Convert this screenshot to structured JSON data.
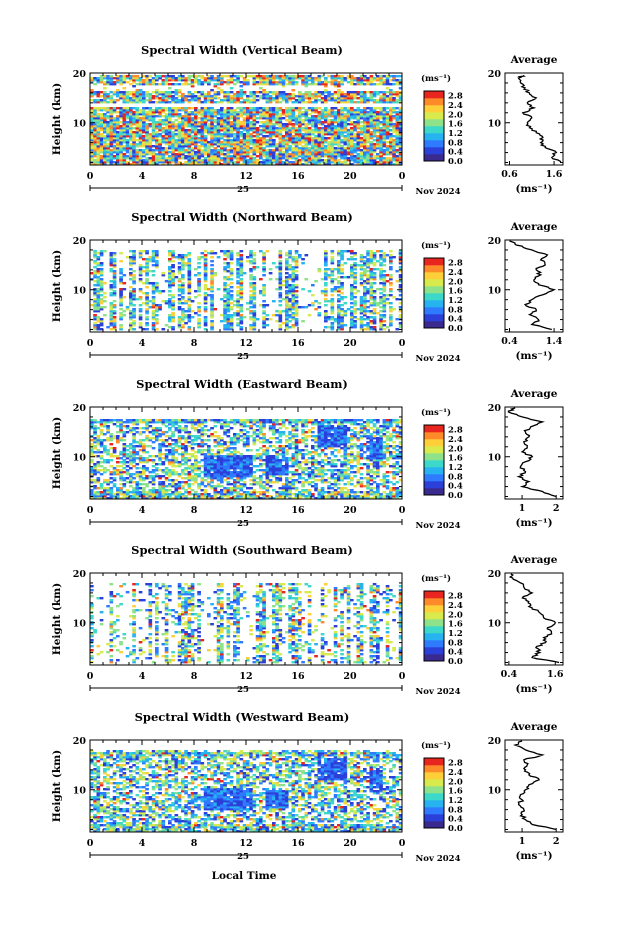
{
  "figure": {
    "xlabel": "Local Time",
    "day_label": "25",
    "date_label": "Nov 2024",
    "colorbar_unit": "(ms⁻¹)",
    "colorbar_ticks": [
      "0.0",
      "0.4",
      "0.8",
      "1.2",
      "1.6",
      "2.0",
      "2.4",
      "2.8"
    ],
    "avg_title": "Average",
    "avg_xlabel": "(ms⁻¹)",
    "ylabel": "Height (km)"
  },
  "colors": {
    "colormap": [
      "#3a2a8f",
      "#2b3fd9",
      "#2f7bff",
      "#27b3f0",
      "#3cd8c9",
      "#8ee38a",
      "#d9ea4d",
      "#ffcf3a",
      "#ff8a2a",
      "#e8251f"
    ]
  },
  "chart_data": [
    {
      "type": "heatmap",
      "title": "Spectral Width (Vertical Beam)",
      "xlabel": "Local Time",
      "ylabel": "Height (km)",
      "x_ticks": [
        "0",
        "4",
        "8",
        "12",
        "16",
        "20",
        "0"
      ],
      "xlim": [
        0,
        24
      ],
      "y_ticks": [
        "10",
        "20"
      ],
      "ylim": [
        1.5,
        20
      ],
      "colorbar_range": [
        0.0,
        3.0
      ],
      "fill": {
        "profile": "vertical",
        "bands": [
          [
            14,
            19.5,
            0.8
          ],
          [
            1.5,
            13,
            0.9
          ]
        ],
        "gaps": [
          [
            16.5,
            17.5
          ]
        ],
        "hot": 0.25
      },
      "average_profile": {
        "title": "Average",
        "xlabel": "(ms⁻¹)",
        "x_ticks": [
          "0.6",
          "1.6"
        ],
        "xlim": [
          0.5,
          1.8
        ],
        "y_ticks": [
          "10",
          "20"
        ],
        "ylim": [
          1.5,
          20
        ],
        "points": [
          [
            1.75,
            2
          ],
          [
            1.55,
            3
          ],
          [
            1.65,
            4
          ],
          [
            1.4,
            5
          ],
          [
            1.3,
            6
          ],
          [
            1.35,
            7
          ],
          [
            1.2,
            8
          ],
          [
            1.05,
            9
          ],
          [
            1.0,
            10
          ],
          [
            1.1,
            11
          ],
          [
            0.9,
            12
          ],
          [
            1.15,
            13
          ],
          [
            1.0,
            14
          ],
          [
            1.2,
            15
          ],
          [
            1.05,
            16
          ],
          [
            0.95,
            17
          ],
          [
            0.85,
            18
          ],
          [
            0.8,
            19
          ],
          [
            0.9,
            19.5
          ]
        ]
      }
    },
    {
      "type": "heatmap",
      "title": "Spectral Width (Northward Beam)",
      "xlabel": "Local Time",
      "ylabel": "Height (km)",
      "x_ticks": [
        "0",
        "4",
        "8",
        "12",
        "16",
        "20",
        "0"
      ],
      "xlim": [
        0,
        24
      ],
      "y_ticks": [
        "10",
        "20"
      ],
      "ylim": [
        1.5,
        20
      ],
      "colorbar_range": [
        0.0,
        3.0
      ],
      "fill": {
        "profile": "sparse",
        "bands": [
          [
            2,
            18,
            0.45
          ]
        ],
        "gaps": [],
        "hot": 0.05
      },
      "average_profile": {
        "title": "Average",
        "xlabel": "(ms⁻¹)",
        "x_ticks": [
          "0.4",
          "1.4"
        ],
        "xlim": [
          0.3,
          1.6
        ],
        "y_ticks": [
          "10",
          "20"
        ],
        "ylim": [
          1.5,
          20
        ],
        "points": [
          [
            1.35,
            2
          ],
          [
            0.9,
            3
          ],
          [
            1.05,
            4
          ],
          [
            0.85,
            5
          ],
          [
            1.0,
            6
          ],
          [
            0.75,
            7
          ],
          [
            0.9,
            8
          ],
          [
            1.15,
            9
          ],
          [
            1.4,
            10
          ],
          [
            1.05,
            11
          ],
          [
            0.95,
            12
          ],
          [
            1.1,
            13
          ],
          [
            1.0,
            14
          ],
          [
            1.2,
            15
          ],
          [
            1.1,
            16
          ],
          [
            1.25,
            17
          ],
          [
            0.9,
            18
          ],
          [
            0.55,
            19
          ],
          [
            0.4,
            19.8
          ]
        ]
      }
    },
    {
      "type": "heatmap",
      "title": "Spectral Width (Eastward Beam)",
      "xlabel": "Local Time",
      "ylabel": "Height (km)",
      "x_ticks": [
        "0",
        "4",
        "8",
        "12",
        "16",
        "20",
        "0"
      ],
      "xlim": [
        0,
        24
      ],
      "y_ticks": [
        "10",
        "20"
      ],
      "ylim": [
        1.5,
        20
      ],
      "colorbar_range": [
        0.0,
        3.0
      ],
      "fill": {
        "profile": "blocks",
        "bands": [
          [
            2,
            17.5,
            0.55
          ]
        ],
        "gaps": [],
        "hot": 0.08
      },
      "average_profile": {
        "title": "Average",
        "xlabel": "(ms⁻¹)",
        "x_ticks": [
          "1",
          "2"
        ],
        "xlim": [
          0.5,
          2.2
        ],
        "y_ticks": [
          "10",
          "20"
        ],
        "ylim": [
          1.5,
          20
        ],
        "points": [
          [
            2.0,
            2
          ],
          [
            1.6,
            3
          ],
          [
            1.0,
            4
          ],
          [
            1.2,
            5
          ],
          [
            0.9,
            6
          ],
          [
            1.1,
            7
          ],
          [
            0.95,
            8
          ],
          [
            1.1,
            9
          ],
          [
            1.3,
            10
          ],
          [
            1.0,
            11
          ],
          [
            1.15,
            12
          ],
          [
            1.05,
            13
          ],
          [
            1.2,
            14
          ],
          [
            1.1,
            15
          ],
          [
            1.25,
            16
          ],
          [
            1.6,
            17
          ],
          [
            1.0,
            18
          ],
          [
            0.6,
            19
          ],
          [
            0.8,
            19.8
          ]
        ]
      }
    },
    {
      "type": "heatmap",
      "title": "Spectral Width (Southward Beam)",
      "xlabel": "Local Time",
      "ylabel": "Height (km)",
      "x_ticks": [
        "0",
        "4",
        "8",
        "12",
        "16",
        "20",
        "0"
      ],
      "xlim": [
        0,
        24
      ],
      "y_ticks": [
        "10",
        "20"
      ],
      "ylim": [
        1.5,
        20
      ],
      "colorbar_range": [
        0.0,
        3.0
      ],
      "fill": {
        "profile": "sparse",
        "bands": [
          [
            2,
            18,
            0.4
          ]
        ],
        "gaps": [],
        "hot": 0.08
      },
      "average_profile": {
        "title": "Average",
        "xlabel": "(ms⁻¹)",
        "x_ticks": [
          "0.4",
          "1.6"
        ],
        "xlim": [
          0.3,
          1.8
        ],
        "y_ticks": [
          "10",
          "20"
        ],
        "ylim": [
          1.5,
          20
        ],
        "points": [
          [
            1.7,
            2
          ],
          [
            1.0,
            3
          ],
          [
            1.2,
            4
          ],
          [
            1.1,
            5
          ],
          [
            1.35,
            6
          ],
          [
            1.3,
            7
          ],
          [
            1.5,
            8
          ],
          [
            1.4,
            9
          ],
          [
            1.6,
            10
          ],
          [
            1.3,
            11
          ],
          [
            1.2,
            12
          ],
          [
            1.0,
            13
          ],
          [
            0.9,
            14
          ],
          [
            0.75,
            15
          ],
          [
            1.0,
            16
          ],
          [
            0.8,
            17
          ],
          [
            0.7,
            18
          ],
          [
            0.5,
            19
          ],
          [
            0.45,
            19.8
          ]
        ]
      }
    },
    {
      "type": "heatmap",
      "title": "Spectral Width (Westward Beam)",
      "xlabel": "Local Time",
      "ylabel": "Height (km)",
      "x_ticks": [
        "0",
        "4",
        "8",
        "12",
        "16",
        "20",
        "0"
      ],
      "xlim": [
        0,
        24
      ],
      "y_ticks": [
        "10",
        "20"
      ],
      "ylim": [
        1.5,
        20
      ],
      "colorbar_range": [
        0.0,
        3.0
      ],
      "fill": {
        "profile": "blocks",
        "bands": [
          [
            2,
            18,
            0.55
          ]
        ],
        "gaps": [],
        "hot": 0.06
      },
      "average_profile": {
        "title": "Average",
        "xlabel": "(ms⁻¹)",
        "x_ticks": [
          "1",
          "2"
        ],
        "xlim": [
          0.5,
          2.2
        ],
        "y_ticks": [
          "10",
          "20"
        ],
        "ylim": [
          1.5,
          20
        ],
        "points": [
          [
            2.0,
            2
          ],
          [
            1.3,
            3
          ],
          [
            1.1,
            4
          ],
          [
            1.0,
            5
          ],
          [
            1.05,
            6
          ],
          [
            0.9,
            7
          ],
          [
            1.0,
            8
          ],
          [
            0.95,
            9
          ],
          [
            1.1,
            10
          ],
          [
            1.2,
            11
          ],
          [
            1.5,
            12
          ],
          [
            1.2,
            13
          ],
          [
            1.1,
            14
          ],
          [
            1.15,
            15
          ],
          [
            1.05,
            16
          ],
          [
            1.6,
            17
          ],
          [
            1.1,
            18
          ],
          [
            0.8,
            19
          ],
          [
            1.0,
            19.8
          ]
        ]
      }
    }
  ]
}
